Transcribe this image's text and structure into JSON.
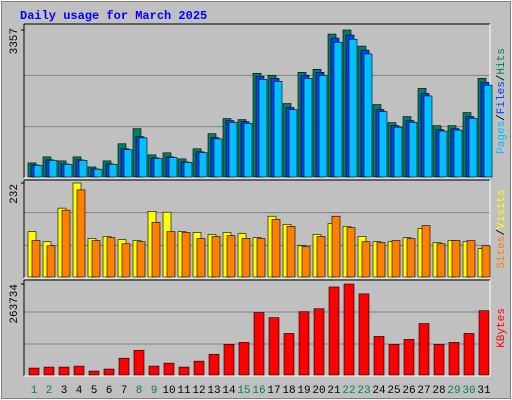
{
  "title": "Daily usage for March 2025",
  "categories": [
    "1",
    "2",
    "3",
    "4",
    "5",
    "6",
    "7",
    "8",
    "9",
    "10",
    "11",
    "12",
    "13",
    "14",
    "15",
    "16",
    "17",
    "18",
    "19",
    "20",
    "21",
    "22",
    "23",
    "24",
    "25",
    "26",
    "27",
    "28",
    "29",
    "30",
    "31"
  ],
  "category_colors": [
    "#00805c",
    "#00805c",
    "#000000",
    "#000000",
    "#000000",
    "#000000",
    "#000000",
    "#00805c",
    "#00805c",
    "#000000",
    "#000000",
    "#000000",
    "#000000",
    "#000000",
    "#00805c",
    "#00805c",
    "#000000",
    "#000000",
    "#000000",
    "#000000",
    "#000000",
    "#00805c",
    "#00805c",
    "#000000",
    "#000000",
    "#000000",
    "#000000",
    "#000000",
    "#00805c",
    "#00805c",
    "#000000"
  ],
  "legend_separator": "/",
  "chart_data": [
    {
      "type": "bar",
      "ylim": [
        0,
        3357
      ],
      "yticks": [
        3357
      ],
      "series": [
        {
          "name": "Hits",
          "color": "#00805c",
          "values": [
            322,
            460,
            368,
            460,
            230,
            368,
            759,
            1104,
            506,
            552,
            414,
            644,
            989,
            1334,
            1311,
            2368,
            2322,
            1678,
            2391,
            2460,
            3265,
            3357,
            2989,
            1655,
            1242,
            1380,
            2023,
            1173,
            1173,
            1472,
            2253
          ]
        },
        {
          "name": "Files",
          "color": "#0040ff",
          "values": [
            276,
            391,
            299,
            391,
            184,
            299,
            644,
            920,
            437,
            460,
            345,
            575,
            897,
            1288,
            1265,
            2299,
            2253,
            1587,
            2322,
            2391,
            3173,
            3242,
            2897,
            1540,
            1173,
            1288,
            1908,
            1081,
            1104,
            1380,
            2161
          ]
        },
        {
          "name": "Pages",
          "color": "#00c0ff",
          "values": [
            268,
            380,
            290,
            380,
            178,
            290,
            625,
            893,
            424,
            446,
            335,
            558,
            870,
            1249,
            1227,
            2230,
            2185,
            1539,
            2252,
            2319,
            3078,
            3145,
            2810,
            1494,
            1138,
            1249,
            1851,
            1049,
            1071,
            1339,
            2096
          ]
        }
      ]
    },
    {
      "type": "bar",
      "ylim": [
        0,
        232
      ],
      "yticks": [
        232
      ],
      "series": [
        {
          "name": "Visits",
          "color": "#ffff00",
          "values": [
            112,
            87,
            170,
            232,
            95,
            100,
            92,
            90,
            162,
            160,
            112,
            110,
            105,
            110,
            107,
            97,
            150,
            130,
            77,
            105,
            132,
            125,
            100,
            87,
            87,
            97,
            120,
            85,
            90,
            87,
            70
          ]
        },
        {
          "name": "Sites",
          "color": "#ff8000",
          "values": [
            90,
            77,
            165,
            215,
            90,
            97,
            82,
            87,
            135,
            112,
            110,
            95,
            100,
            102,
            95,
            95,
            142,
            125,
            75,
            100,
            150,
            122,
            87,
            85,
            90,
            95,
            127,
            82,
            90,
            90,
            77
          ]
        }
      ]
    },
    {
      "type": "bar",
      "ylim": [
        0,
        263734
      ],
      "yticks": [
        263734
      ],
      "series": [
        {
          "name": "KBytes",
          "color": "#ff0000",
          "values": [
            20069,
            22935,
            22935,
            25800,
            11467,
            17200,
            48734,
            71668,
            25800,
            34400,
            22935,
            40134,
            60201,
            88868,
            94601,
            180603,
            166270,
            120402,
            183470,
            192070,
            255137,
            263734,
            235072,
            111802,
            88868,
            103202,
            149067,
            88868,
            94601,
            120402,
            186337
          ]
        }
      ]
    }
  ]
}
